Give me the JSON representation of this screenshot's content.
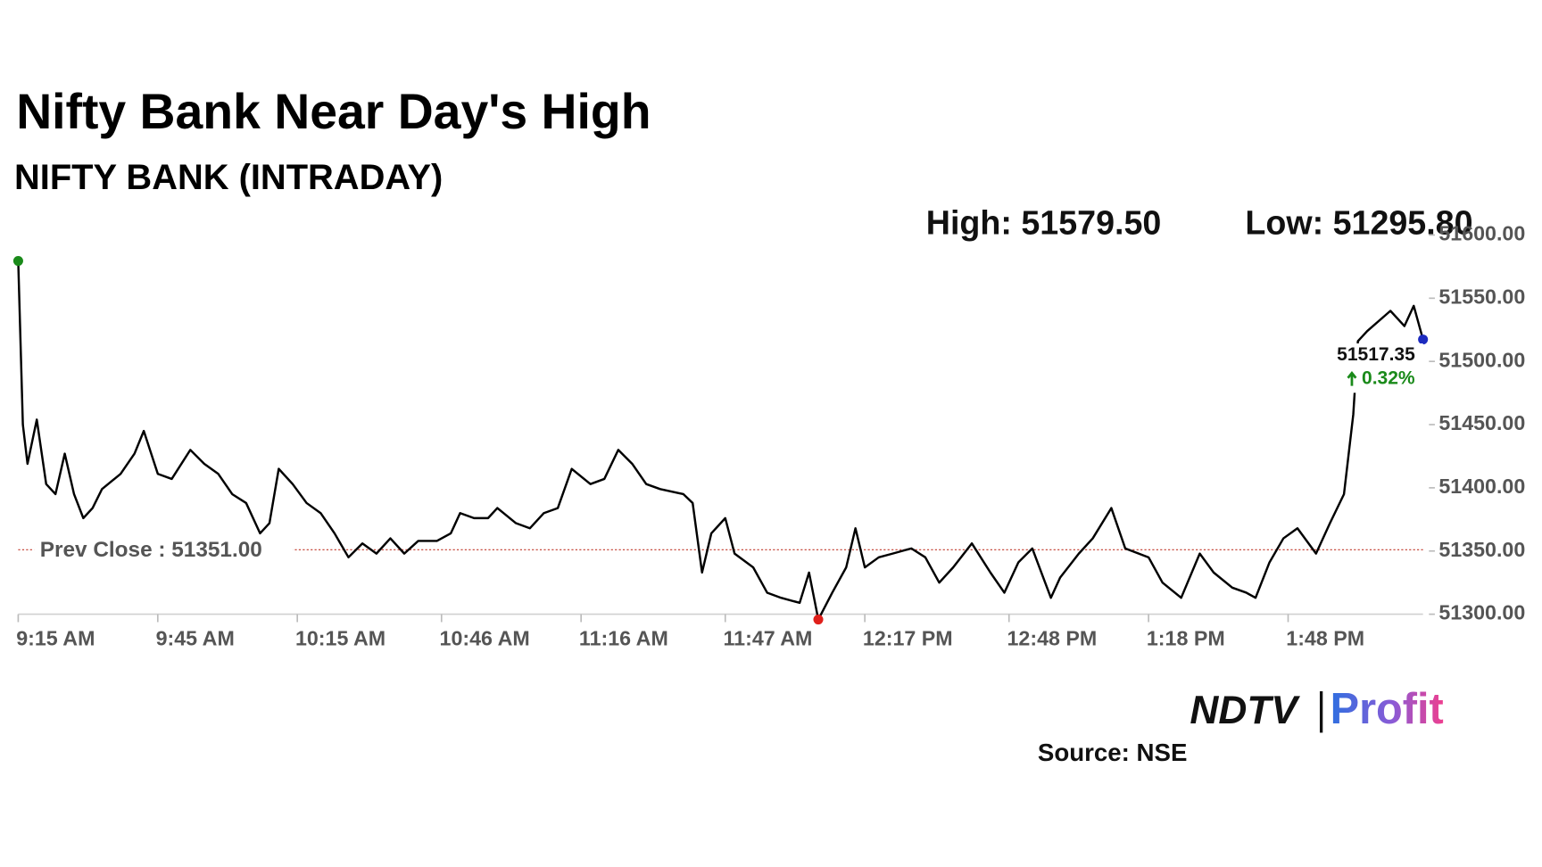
{
  "chart_data": {
    "type": "line",
    "title": "Nifty Bank Near Day's High",
    "subtitle": "NIFTY BANK (INTRADAY)",
    "high_label": "High: 51579.50",
    "low_label": "Low: 51295.80",
    "change_label": "0.32%",
    "reference_line": {
      "value": 51351,
      "label": "Prev Close : 51351.00",
      "color": "#c0392b"
    },
    "color": "#000000",
    "start_marker_color": "#1a8a1a",
    "low_marker_color": "#e0201b",
    "end_marker_color": "#1d2bbf",
    "x": [
      0,
      1,
      2,
      4,
      6,
      8,
      10,
      12,
      14,
      16,
      18,
      22,
      25,
      27,
      30,
      33,
      37,
      40,
      43,
      46,
      49,
      52,
      54,
      56,
      59,
      62,
      65,
      68,
      71,
      74,
      77,
      80,
      83,
      86,
      90,
      93,
      95,
      98,
      101,
      103,
      107,
      110,
      113,
      116,
      119,
      123,
      126,
      129,
      132,
      135,
      138,
      143,
      145,
      147,
      149,
      152,
      154,
      158,
      161,
      164,
      168,
      170,
      172,
      175,
      178,
      180,
      182,
      185,
      188,
      192,
      195,
      198,
      201,
      205,
      209,
      212,
      215,
      218,
      222,
      224,
      228,
      231,
      235,
      238,
      243,
      246,
      250,
      254,
      257,
      261,
      264,
      266,
      269,
      272,
      275,
      279,
      282,
      285,
      287,
      288,
      290,
      295,
      298,
      300,
      302
    ],
    "values": [
      51579.5,
      51450,
      51419,
      51454,
      51403,
      51395,
      51427,
      51395,
      51376,
      51384,
      51399,
      51411,
      51427,
      51445,
      51411,
      51407,
      51430,
      51419,
      51411,
      51395,
      51388,
      51364,
      51372,
      51415,
      51403,
      51388,
      51380,
      51364,
      51345,
      51356,
      51348,
      51360,
      51348,
      51358,
      51358,
      51364,
      51380,
      51376,
      51376,
      51384,
      51372,
      51368,
      51380,
      51384,
      51415,
      51403,
      51407,
      51430,
      51419,
      51403,
      51399,
      51395,
      51388,
      51333,
      51364,
      51376,
      51348,
      51337,
      51317,
      51313,
      51309,
      51333,
      51295.8,
      51317,
      51337,
      51368,
      51337,
      51345,
      51348,
      51352,
      51345,
      51325,
      51337,
      51356,
      51333,
      51317,
      51341,
      51352,
      51313,
      51329,
      51348,
      51360,
      51384,
      51352,
      51345,
      51325,
      51313,
      51348,
      51333,
      51321,
      51317,
      51313,
      51341,
      51360,
      51368,
      51348,
      51372,
      51395,
      51458,
      51516,
      51524,
      51540,
      51528,
      51544,
      51517.35
    ],
    "xlim": [
      0,
      302
    ],
    "xticks": [
      {
        "value": 0,
        "label": "9:15 AM"
      },
      {
        "value": 30,
        "label": "9:45 AM"
      },
      {
        "value": 60,
        "label": "10:15 AM"
      },
      {
        "value": 91,
        "label": "10:46 AM"
      },
      {
        "value": 121,
        "label": "11:16 AM"
      },
      {
        "value": 152,
        "label": "11:47 AM"
      },
      {
        "value": 182,
        "label": "12:17 PM"
      },
      {
        "value": 213,
        "label": "12:48 PM"
      },
      {
        "value": 243,
        "label": "1:18 PM"
      },
      {
        "value": 273,
        "label": "1:48 PM"
      }
    ],
    "ylim": [
      51300,
      51600
    ],
    "yticks": [
      {
        "value": 51300,
        "label": "51300.00"
      },
      {
        "value": 51350,
        "label": "51350.00"
      },
      {
        "value": 51400,
        "label": "51400.00"
      },
      {
        "value": 51450,
        "label": "51450.00"
      },
      {
        "value": 51500,
        "label": "51500.00"
      },
      {
        "value": 51550,
        "label": "51550.00"
      },
      {
        "value": 51600,
        "label": "51600.00"
      }
    ],
    "grid": false
  },
  "footer": {
    "brand": "NDTV",
    "product": "Profit",
    "source": "Source: NSE"
  }
}
